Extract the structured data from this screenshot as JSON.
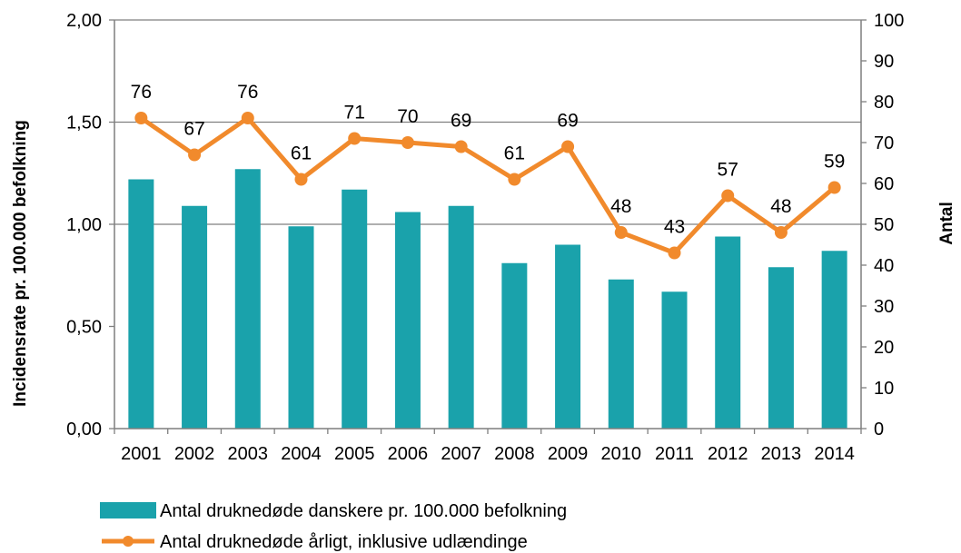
{
  "chart_data": {
    "type": "bar+line",
    "categories": [
      "2001",
      "2002",
      "2003",
      "2004",
      "2005",
      "2006",
      "2007",
      "2008",
      "2009",
      "2010",
      "2011",
      "2012",
      "2013",
      "2014"
    ],
    "series": [
      {
        "name": "Antal druknedøde danskere pr. 100.000 befolkning",
        "type": "bar",
        "axis": "left",
        "color": "#1aa2ab",
        "values": [
          1.22,
          1.09,
          1.27,
          0.99,
          1.17,
          1.06,
          1.09,
          0.81,
          0.9,
          0.73,
          0.67,
          0.94,
          0.79,
          0.87
        ]
      },
      {
        "name": "Antal druknedøde årligt, inklusive udlændinge",
        "type": "line",
        "axis": "right",
        "color": "#f18a2c",
        "values": [
          76,
          67,
          76,
          61,
          71,
          70,
          69,
          61,
          69,
          48,
          43,
          57,
          48,
          59
        ],
        "data_labels": [
          "76",
          "67",
          "76",
          "61",
          "71",
          "70",
          "69",
          "61",
          "69",
          "48",
          "43",
          "57",
          "48",
          "59"
        ]
      }
    ],
    "y_left": {
      "label": "Incidensrate pr. 100.000 befolkning",
      "ylim": [
        0,
        2
      ],
      "ticks": [
        0,
        0.5,
        1,
        1.5,
        2
      ],
      "tick_labels": [
        "0,00",
        "0,50",
        "1,00",
        "1,50",
        "2,00"
      ]
    },
    "y_right": {
      "label": "Antal",
      "ylim": [
        0,
        100
      ],
      "ticks": [
        0,
        10,
        20,
        30,
        40,
        50,
        60,
        70,
        80,
        90,
        100
      ],
      "tick_labels": [
        "0",
        "10",
        "20",
        "30",
        "40",
        "50",
        "60",
        "70",
        "80",
        "90",
        "100"
      ]
    },
    "grid": "horizontal lines at 1,00 and 1,50 only",
    "legend_position": "bottom-left",
    "title": ""
  }
}
